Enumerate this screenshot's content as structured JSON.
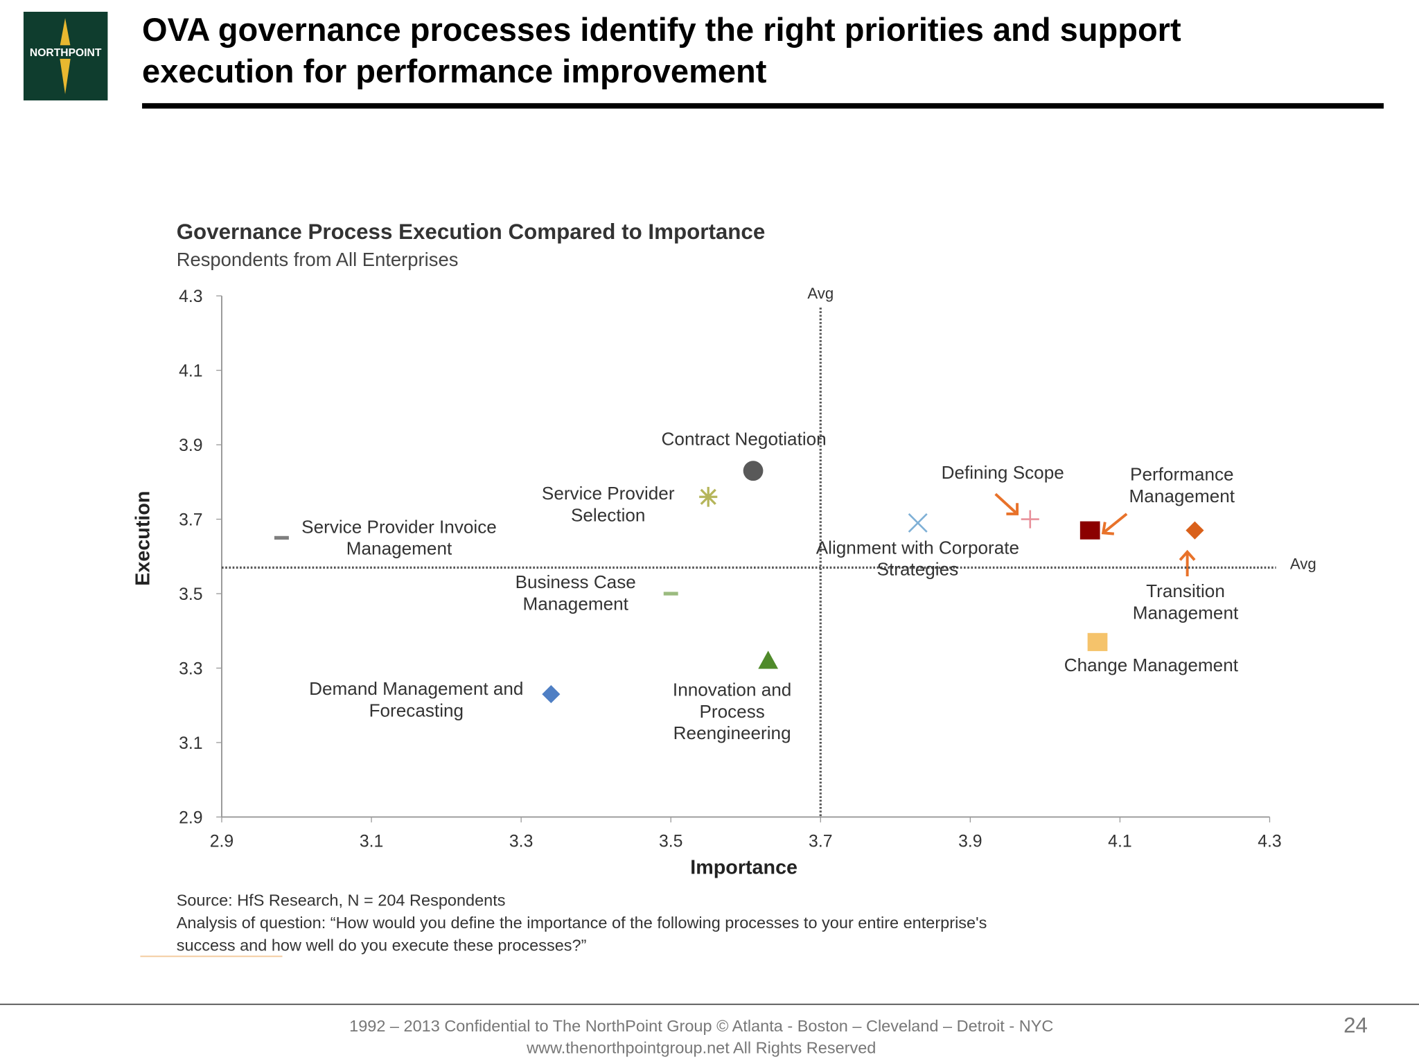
{
  "slide": {
    "title_line1": "OVA governance processes identify the right priorities and support",
    "title_line2": "execution for performance improvement",
    "logo_text": "NORTHPOINT",
    "footer_line1": "1992 – 2013  Confidential to The NorthPoint Group ©  Atlanta - Boston – Cleveland – Detroit -  NYC",
    "footer_line2": "www.thenorthpointgroup.net All Rights Reserved",
    "page_number": "24"
  },
  "chart_data": {
    "type": "scatter",
    "title": "Governance Process Execution Compared to Importance",
    "subtitle": "Respondents from All Enterprises",
    "x_label": "Importance",
    "y_label": "Execution",
    "xlim": [
      2.9,
      4.3
    ],
    "xticks": [
      2.9,
      3.1,
      3.3,
      3.5,
      3.7,
      3.9,
      4.1,
      4.3
    ],
    "ylim": [
      2.9,
      4.3
    ],
    "yticks": [
      2.9,
      3.1,
      3.3,
      3.5,
      3.7,
      3.9,
      4.1,
      4.3
    ],
    "avg_x": 3.7,
    "avg_y": 3.57,
    "avg_label": "Avg",
    "series": [
      {
        "name": "Service Provider Invoice Management",
        "color": "#7f7f7f",
        "marker": "dash",
        "x": [
          2.98
        ],
        "values": [
          3.65
        ]
      },
      {
        "name": "Contract Negotiation",
        "color": "#595959",
        "marker": "circle",
        "x": [
          3.61
        ],
        "values": [
          3.83
        ]
      },
      {
        "name": "Service Provider Selection",
        "color": "#b5b55a",
        "marker": "star",
        "x": [
          3.55
        ],
        "values": [
          3.76
        ]
      },
      {
        "name": "Business Case Management",
        "color": "#9bbb7f",
        "marker": "dash",
        "x": [
          3.5
        ],
        "values": [
          3.5
        ]
      },
      {
        "name": "Demand Management and Forecasting",
        "color": "#4f7fc4",
        "marker": "diamond",
        "x": [
          3.34
        ],
        "values": [
          3.23
        ]
      },
      {
        "name": "Innovation and Process Reengineering",
        "color": "#4f8a2a",
        "marker": "triangle",
        "x": [
          3.63
        ],
        "values": [
          3.32
        ]
      },
      {
        "name": "Alignment with Corporate Strategies",
        "color": "#7fb0d6",
        "marker": "x",
        "x": [
          3.83
        ],
        "values": [
          3.69
        ]
      },
      {
        "name": "Defining Scope",
        "color": "#e8909a",
        "marker": "plus",
        "x": [
          3.98
        ],
        "values": [
          3.7
        ]
      },
      {
        "name": "Performance Management",
        "color": "#8b0000",
        "marker": "square",
        "x": [
          4.06
        ],
        "values": [
          3.67
        ]
      },
      {
        "name": "Transition Management",
        "color": "#d9601a",
        "marker": "diamond",
        "x": [
          4.2
        ],
        "values": [
          3.67
        ]
      },
      {
        "name": "Change Management",
        "color": "#f5c36b",
        "marker": "square",
        "x": [
          4.07
        ],
        "values": [
          3.37
        ]
      }
    ],
    "source": "Source: HfS Research, N = 204 Respondents",
    "note_line1": "Analysis of question: “How would you define the importance of the following processes to your entire enterprise's",
    "note_line2": "success and how well do you execute these processes?”"
  }
}
